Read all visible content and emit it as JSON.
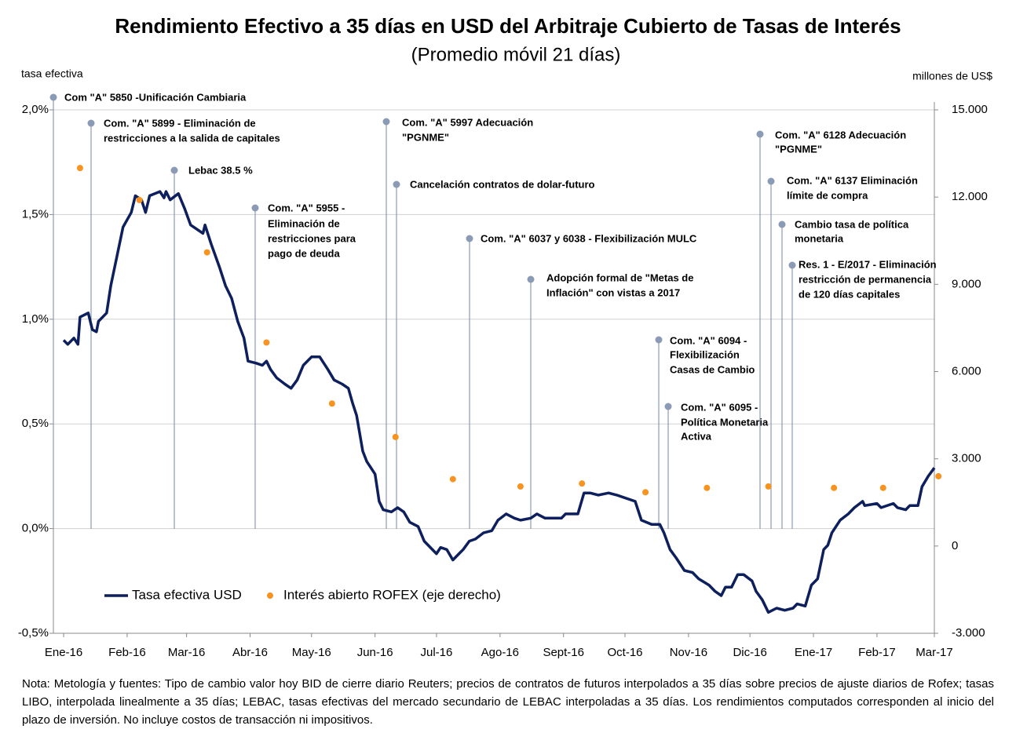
{
  "chart_data": {
    "type": "line",
    "title": "Rendimiento Efectivo a 35 días en USD del Arbitraje Cubierto de Tasas de Interés",
    "subtitle": "(Promedio móvil 21 días)",
    "y_label": "tasa efectiva",
    "y2_label": "millones de US$",
    "xlim": [
      -5,
      425
    ],
    "xticks": [
      {
        "value": 0,
        "label": "Ene-16"
      },
      {
        "value": 31,
        "label": "Feb-16"
      },
      {
        "value": 60,
        "label": "Mar-16"
      },
      {
        "value": 91,
        "label": "Abr-16"
      },
      {
        "value": 121,
        "label": "May-16"
      },
      {
        "value": 152,
        "label": "Jun-16"
      },
      {
        "value": 182,
        "label": "Jul-16"
      },
      {
        "value": 213,
        "label": "Ago-16"
      },
      {
        "value": 244,
        "label": "Sept-16"
      },
      {
        "value": 274,
        "label": "Oct-16"
      },
      {
        "value": 305,
        "label": "Nov-16"
      },
      {
        "value": 335,
        "label": "Dic-16"
      },
      {
        "value": 366,
        "label": "Ene-17"
      },
      {
        "value": 397,
        "label": "Feb-17"
      },
      {
        "value": 425,
        "label": "Mar-17"
      }
    ],
    "ylim": [
      -0.5,
      2.0
    ],
    "yticks": [
      {
        "value": -0.5,
        "label": "-0,5%"
      },
      {
        "value": 0,
        "label": "0,0%"
      },
      {
        "value": 0.5,
        "label": "0,5%"
      },
      {
        "value": 1.0,
        "label": "1,0%"
      },
      {
        "value": 1.5,
        "label": "1,5%"
      },
      {
        "value": 2.0,
        "label": "2,0%"
      }
    ],
    "y2lim": [
      -3000,
      15000
    ],
    "y2ticks": [
      {
        "value": -3000,
        "label": "-3.000"
      },
      0,
      {
        "value": 3000,
        "label": "3.000"
      },
      {
        "value": 6000,
        "label": "6.000"
      },
      {
        "value": 9000,
        "label": "9.000"
      },
      {
        "value": 12000,
        "label": "12.000"
      },
      {
        "value": 15000,
        "label": "15.000"
      }
    ],
    "grid": true,
    "series": [
      {
        "name": "Tasa efectiva USD",
        "color": "#0d1f5c",
        "type": "line",
        "x": [
          0,
          2,
          5,
          7,
          8,
          12,
          14,
          16,
          17,
          21,
          23,
          26,
          29,
          33,
          35,
          38,
          40,
          42,
          47,
          49,
          50,
          52,
          56,
          59,
          62,
          68,
          69,
          72,
          76,
          79,
          82,
          85,
          88,
          90,
          94,
          97,
          99,
          101,
          104,
          108,
          111,
          114,
          117,
          121,
          125,
          129,
          132,
          136,
          139,
          141,
          143,
          146,
          148,
          152,
          154,
          156,
          160,
          163,
          166,
          169,
          173,
          176,
          179,
          182,
          184,
          187,
          190,
          193,
          195,
          198,
          201,
          205,
          209,
          212,
          216,
          220,
          223,
          228,
          231,
          235,
          243,
          245,
          251,
          254,
          257,
          261,
          266,
          270,
          279,
          282,
          287,
          291,
          293,
          296,
          299,
          303,
          307,
          310,
          315,
          318,
          321,
          323,
          326,
          329,
          332,
          336,
          338,
          341,
          344,
          348,
          352,
          356,
          358,
          362,
          365,
          368,
          371,
          373,
          375,
          379,
          383,
          386,
          390,
          391,
          397,
          399,
          405,
          407,
          411,
          413,
          417,
          419,
          422,
          425
        ],
        "values": [
          0.9,
          0.88,
          0.91,
          0.88,
          1.01,
          1.03,
          0.95,
          0.94,
          0.99,
          1.03,
          1.16,
          1.3,
          1.44,
          1.51,
          1.59,
          1.57,
          1.51,
          1.59,
          1.61,
          1.58,
          1.61,
          1.57,
          1.6,
          1.53,
          1.45,
          1.41,
          1.45,
          1.36,
          1.25,
          1.16,
          1.1,
          0.99,
          0.91,
          0.8,
          0.79,
          0.78,
          0.8,
          0.76,
          0.72,
          0.69,
          0.67,
          0.71,
          0.78,
          0.82,
          0.82,
          0.76,
          0.71,
          0.69,
          0.67,
          0.6,
          0.54,
          0.37,
          0.32,
          0.26,
          0.13,
          0.09,
          0.08,
          0.1,
          0.08,
          0.03,
          0.01,
          -0.06,
          -0.09,
          -0.12,
          -0.09,
          -0.1,
          -0.15,
          -0.12,
          -0.1,
          -0.06,
          -0.05,
          -0.02,
          -0.01,
          0.04,
          0.07,
          0.05,
          0.04,
          0.05,
          0.07,
          0.05,
          0.05,
          0.07,
          0.07,
          0.17,
          0.17,
          0.16,
          0.17,
          0.16,
          0.13,
          0.04,
          0.02,
          0.02,
          -0.02,
          -0.1,
          -0.14,
          -0.2,
          -0.21,
          -0.24,
          -0.27,
          -0.3,
          -0.32,
          -0.28,
          -0.28,
          -0.22,
          -0.22,
          -0.25,
          -0.3,
          -0.34,
          -0.4,
          -0.38,
          -0.39,
          -0.38,
          -0.36,
          -0.37,
          -0.27,
          -0.24,
          -0.1,
          -0.08,
          -0.02,
          0.04,
          0.07,
          0.1,
          0.13,
          0.11,
          0.12,
          0.1,
          0.12,
          0.1,
          0.09,
          0.11,
          0.11,
          0.2,
          0.25,
          0.29
        ]
      },
      {
        "name": "Interés abierto ROFEX (eje derecho)",
        "color": "#f7931e",
        "type": "scatter",
        "axis": "y2",
        "x": [
          8,
          37,
          70,
          99,
          131,
          162,
          190,
          223,
          253,
          284,
          314,
          344,
          376,
          400,
          427
        ],
        "values": [
          13000,
          11900,
          10100,
          7000,
          4900,
          3750,
          2300,
          2050,
          2150,
          1850,
          2000,
          2050,
          2000,
          2000,
          2400
        ]
      }
    ],
    "annotations": [
      [
        "Com \"A\" 5850 -Unificación  Cambiaria"
      ],
      [
        "Com. \"A\" 5899 - Eliminación  de",
        "restricciones a la salida de capitales"
      ],
      [
        "Lebac 38.5 %"
      ],
      [
        "Com. \"A\" 5955 -",
        "Eliminación  de",
        "restricciones para",
        "pago de deuda"
      ],
      [
        "Com. \"A\" 5997 Adecuación",
        "\"PGNME\""
      ],
      [
        "Cancelación  contratos de dolar-futuro"
      ],
      [
        "Com. \"A\" 6037 y 6038 - Flexibilización  MULC"
      ],
      [
        "Adopción  formal de \"Metas de",
        "Inflación\"  con vistas a 2017"
      ],
      [
        "Com. \"A\" 6094 -",
        "Flexibilización",
        "Casas de Cambio"
      ],
      [
        "Com. \"A\" 6095 -",
        "Política Monetaria",
        "Activa"
      ],
      [
        "Com. \"A\" 6128 Adecuación",
        "\"PGNME\""
      ],
      [
        "Com. \"A\" 6137 Eliminación",
        "límite de compra"
      ],
      [
        "Cambio tasa de política",
        "monetaria"
      ],
      [
        "Res. 1 - E/2017 - Eliminación",
        "restricción de permanencia",
        "de 120 días capitales"
      ]
    ],
    "note": "Nota: Metología y fuentes: Tipo de cambio valor hoy BID de cierre diario Reuters; precios de contratos de futuros interpolados a 35 días sobre precios de ajuste diarios de Rofex; tasas LIBO, interpolada linealmente a 35 días; LEBAC, tasas efectivas del mercado secundario de LEBAC interpoladas a 35 días. Los rendimientos computados  corresponden  al inicio del plazo de inversión. No incluye costos de transacción ni impositivos."
  }
}
